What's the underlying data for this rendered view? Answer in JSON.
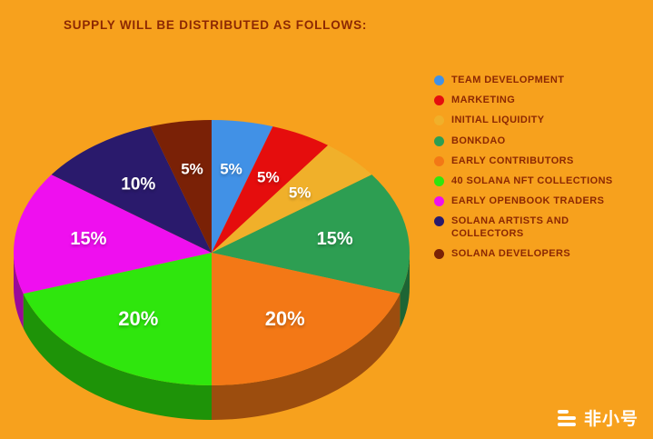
{
  "title": "SUPPLY WILL BE DISTRIBUTED AS FOLLOWS:",
  "colors": {
    "background": "#F7A11D",
    "title_text": "#8C2803",
    "legend_text": "#8C2803",
    "slice_label_text": "#FFFFFF"
  },
  "chart_data": {
    "type": "pie",
    "title": "SUPPLY WILL BE DISTRIBUTED AS FOLLOWS:",
    "legend_position": "right",
    "style": "3d-pie",
    "start_angle_deg": -90,
    "direction": "clockwise",
    "categories": [
      "TEAM DEVELOPMENT",
      "MARKETING",
      "INITIAL LIQUIDITY",
      "BONKDAO",
      "EARLY CONTRIBUTORS",
      "40 SOLANA NFT COLLECTIONS",
      "EARLY OPENBOOK TRADERS",
      "SOLANA ARTISTS AND\nCOLLECTORS",
      "SOLANA DEVELOPERS"
    ],
    "values": [
      5,
      5,
      5,
      15,
      20,
      20,
      15,
      10,
      5
    ],
    "slice_labels": [
      "5%",
      "5%",
      "5%",
      "15%",
      "20%",
      "20%",
      "15%",
      "10%",
      "5%"
    ],
    "slice_colors": [
      "#4191E6",
      "#E50D0D",
      "#F0B02A",
      "#2D9E52",
      "#F37816",
      "#2FE60D",
      "#EF0FEF",
      "#2A1A6C",
      "#7A2106"
    ]
  },
  "watermark": {
    "text": "非小号"
  }
}
